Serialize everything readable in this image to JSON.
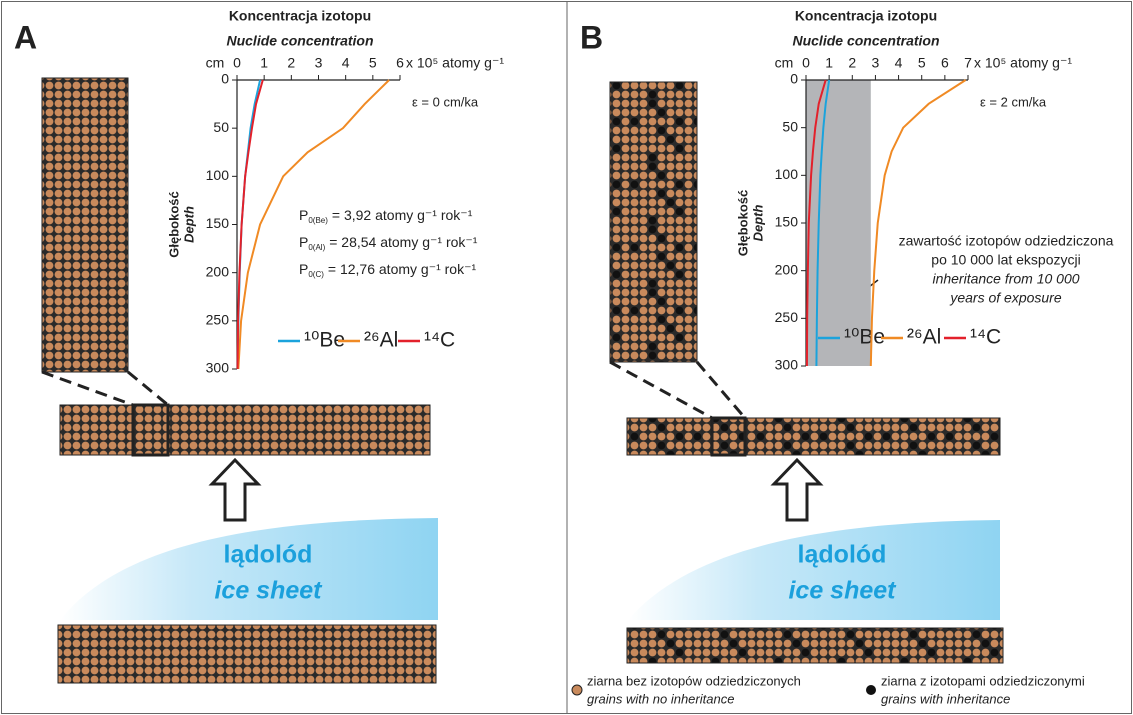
{
  "panels": [
    {
      "letter": "A",
      "ice_label": "lądolód",
      "ice_label_en": "ice sheet"
    },
    {
      "letter": "B",
      "ice_label": "lądolód",
      "ice_label_en": "ice sheet"
    }
  ],
  "chart_data": [
    {
      "type": "line",
      "title": "Koncentracja izotopu",
      "subtitle": "Nuclide concentration",
      "x_unit": "x 10⁵ atomy g⁻¹",
      "y_unit": "cm",
      "ylabel": "Głębokość",
      "ylabel_en": "Depth",
      "xlim": [
        0,
        6
      ],
      "xticks": [
        0,
        1,
        2,
        3,
        4,
        5,
        6
      ],
      "ylim": [
        0,
        300
      ],
      "yticks": [
        0,
        50,
        100,
        150,
        200,
        250,
        300
      ],
      "y_inverted": true,
      "depths": [
        0,
        25,
        50,
        75,
        100,
        150,
        200,
        250,
        300
      ],
      "series": [
        {
          "name": "¹⁰Be",
          "color": "#1ba3dc",
          "values": [
            0.85,
            0.65,
            0.5,
            0.4,
            0.3,
            0.17,
            0.1,
            0.05,
            0.02
          ]
        },
        {
          "name": "²⁶Al",
          "color": "#f08a24",
          "values": [
            5.6,
            4.7,
            3.9,
            2.6,
            1.7,
            0.85,
            0.4,
            0.15,
            0.05
          ]
        },
        {
          "name": "¹⁴C",
          "color": "#e3212b",
          "values": [
            0.95,
            0.7,
            0.55,
            0.42,
            0.3,
            0.17,
            0.09,
            0.04,
            0.02
          ]
        }
      ],
      "annotation": "ε = 0 cm/ka",
      "production_rates": [
        {
          "symbol": "P",
          "subscript": "0(Be)",
          "text": "= 3,92 atomy g⁻¹ rok⁻¹"
        },
        {
          "symbol": "P",
          "subscript": "0(Al)",
          "text": "= 28,54 atomy g⁻¹ rok⁻¹"
        },
        {
          "symbol": "P",
          "subscript": "0(C)",
          "text": "= 12,76 atomy g⁻¹ rok⁻¹"
        }
      ]
    },
    {
      "type": "line",
      "title": "Koncentracja izotopu",
      "subtitle": "Nuclide concentration",
      "x_unit": "x 10⁵ atomy g⁻¹",
      "y_unit": "cm",
      "ylabel": "Głębokość",
      "ylabel_en": "Depth",
      "xlim": [
        0,
        7
      ],
      "xticks": [
        0,
        1,
        2,
        3,
        4,
        5,
        6,
        7
      ],
      "ylim": [
        0,
        300
      ],
      "yticks": [
        0,
        50,
        100,
        150,
        200,
        250,
        300
      ],
      "y_inverted": true,
      "depths": [
        0,
        25,
        50,
        75,
        100,
        150,
        200,
        250,
        300
      ],
      "inheritance": 2.8,
      "series": [
        {
          "name": "¹⁰Be",
          "color": "#1ba3dc",
          "values": [
            1.0,
            0.85,
            0.75,
            0.68,
            0.62,
            0.55,
            0.5,
            0.47,
            0.45
          ]
        },
        {
          "name": "²⁶Al",
          "color": "#f08a24",
          "values": [
            6.9,
            5.3,
            4.2,
            3.7,
            3.4,
            3.1,
            2.95,
            2.85,
            2.8
          ]
        },
        {
          "name": "¹⁴C",
          "color": "#e3212b",
          "values": [
            0.85,
            0.55,
            0.4,
            0.3,
            0.22,
            0.12,
            0.08,
            0.05,
            0.04
          ]
        }
      ],
      "annotation": "ε = 2 cm/ka",
      "note": [
        "zawartość izotopów odziedziczona",
        "po 10 000 lat ekspozycji",
        "inheritance from 10 000",
        "years of exposure"
      ]
    }
  ],
  "legend": [
    {
      "label": "ziarna bez izotopów odziedziczonych",
      "label_en": "grains with no inheritance"
    },
    {
      "label": "ziarna z izotopami odziedziczonymi",
      "label_en": "grains with inheritance"
    }
  ]
}
